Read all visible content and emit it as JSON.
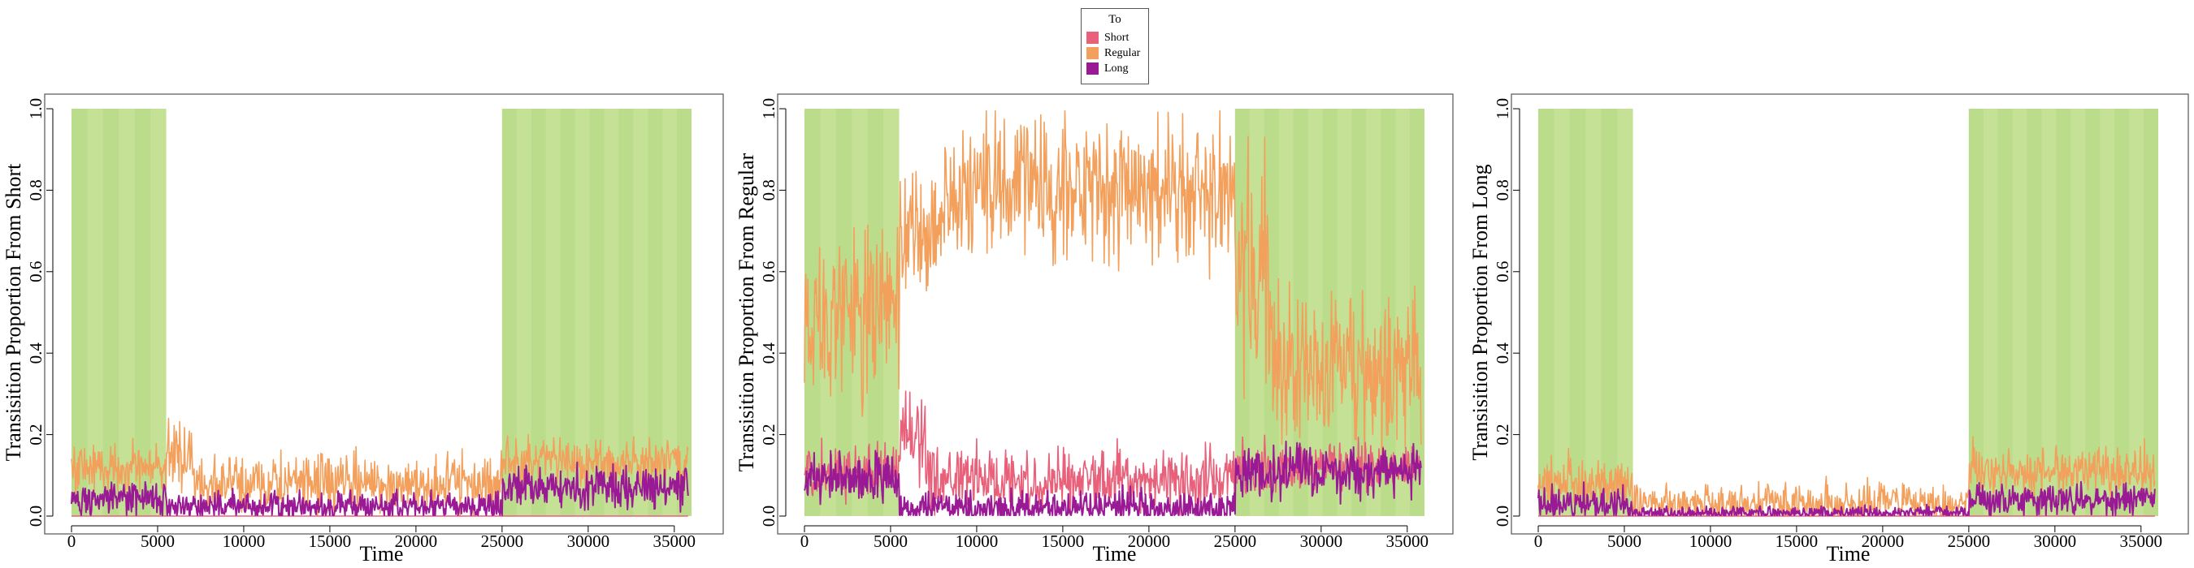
{
  "legend": {
    "title": "To",
    "items": [
      {
        "label": "Short",
        "color": "#e8607a"
      },
      {
        "label": "Regular",
        "color": "#f2a05c"
      },
      {
        "label": "Long",
        "color": "#9a1a96"
      }
    ]
  },
  "colors": {
    "shade": "#c4e196",
    "shade_stripe": "#b5d883",
    "panel_border": "#555555"
  },
  "chart_data": [
    {
      "type": "line",
      "xlabel": "Time",
      "ylabel": "Transisition Proportion From Short",
      "xlim": [
        0,
        36000
      ],
      "ylim": [
        0,
        1
      ],
      "xticks": [
        "0",
        "5000",
        "10000",
        "15000",
        "20000",
        "25000",
        "30000",
        "35000"
      ],
      "yticks": [
        "0.0",
        "0.2",
        "0.4",
        "0.6",
        "0.8",
        "1.0"
      ],
      "shaded_intervals": [
        [
          0,
          5500
        ],
        [
          25000,
          36000
        ]
      ],
      "series_profile": [
        {
          "name": "Short",
          "segments": [
            [
              0,
              36000,
              0.0,
              0.0
            ]
          ]
        },
        {
          "name": "Regular",
          "segments": [
            [
              0,
              5500,
              0.12,
              0.03
            ],
            [
              5500,
              7000,
              0.15,
              0.04
            ],
            [
              7000,
              25000,
              0.08,
              0.035
            ],
            [
              25000,
              36000,
              0.13,
              0.03
            ]
          ]
        },
        {
          "name": "Long",
          "segments": [
            [
              0,
              5500,
              0.04,
              0.02
            ],
            [
              5500,
              25000,
              0.025,
              0.018
            ],
            [
              25000,
              36000,
              0.07,
              0.025
            ]
          ]
        }
      ]
    },
    {
      "type": "line",
      "xlabel": "Time",
      "ylabel": "Transisition Proportion From Regular",
      "xlim": [
        0,
        36000
      ],
      "ylim": [
        0,
        1
      ],
      "xticks": [
        "0",
        "5000",
        "10000",
        "15000",
        "20000",
        "25000",
        "30000",
        "35000"
      ],
      "yticks": [
        "0.0",
        "0.2",
        "0.4",
        "0.6",
        "0.8",
        "1.0"
      ],
      "shaded_intervals": [
        [
          0,
          5500
        ],
        [
          25000,
          36000
        ]
      ],
      "series_profile": [
        {
          "name": "Short",
          "segments": [
            [
              0,
              5500,
              0.11,
              0.03
            ],
            [
              5500,
              7000,
              0.19,
              0.05
            ],
            [
              7000,
              25000,
              0.09,
              0.04
            ],
            [
              25000,
              36000,
              0.12,
              0.03
            ]
          ]
        },
        {
          "name": "Regular",
          "segments": [
            [
              0,
              5500,
              0.5,
              0.1
            ],
            [
              5500,
              8000,
              0.68,
              0.08
            ],
            [
              8000,
              25000,
              0.8,
              0.09
            ],
            [
              25000,
              27000,
              0.55,
              0.15
            ],
            [
              27000,
              36000,
              0.36,
              0.1
            ]
          ]
        },
        {
          "name": "Long",
          "segments": [
            [
              0,
              5500,
              0.09,
              0.03
            ],
            [
              5500,
              25000,
              0.02,
              0.02
            ],
            [
              25000,
              36000,
              0.11,
              0.03
            ]
          ]
        }
      ]
    },
    {
      "type": "line",
      "xlabel": "Time",
      "ylabel": "Transisition Proportion From Long",
      "xlim": [
        0,
        36000
      ],
      "ylim": [
        0,
        1
      ],
      "xticks": [
        "0",
        "5000",
        "10000",
        "15000",
        "20000",
        "25000",
        "30000",
        "35000"
      ],
      "yticks": [
        "0.0",
        "0.2",
        "0.4",
        "0.6",
        "0.8",
        "1.0"
      ],
      "shaded_intervals": [
        [
          0,
          5500
        ],
        [
          25000,
          36000
        ]
      ],
      "series_profile": [
        {
          "name": "Short",
          "segments": [
            [
              0,
              36000,
              0.0,
              0.0
            ]
          ]
        },
        {
          "name": "Regular",
          "segments": [
            [
              0,
              5500,
              0.08,
              0.03
            ],
            [
              5500,
              25000,
              0.03,
              0.025
            ],
            [
              25000,
              36000,
              0.11,
              0.03
            ]
          ]
        },
        {
          "name": "Long",
          "segments": [
            [
              0,
              5500,
              0.03,
              0.02
            ],
            [
              5500,
              25000,
              0.008,
              0.008
            ],
            [
              25000,
              36000,
              0.04,
              0.02
            ]
          ]
        }
      ]
    }
  ]
}
